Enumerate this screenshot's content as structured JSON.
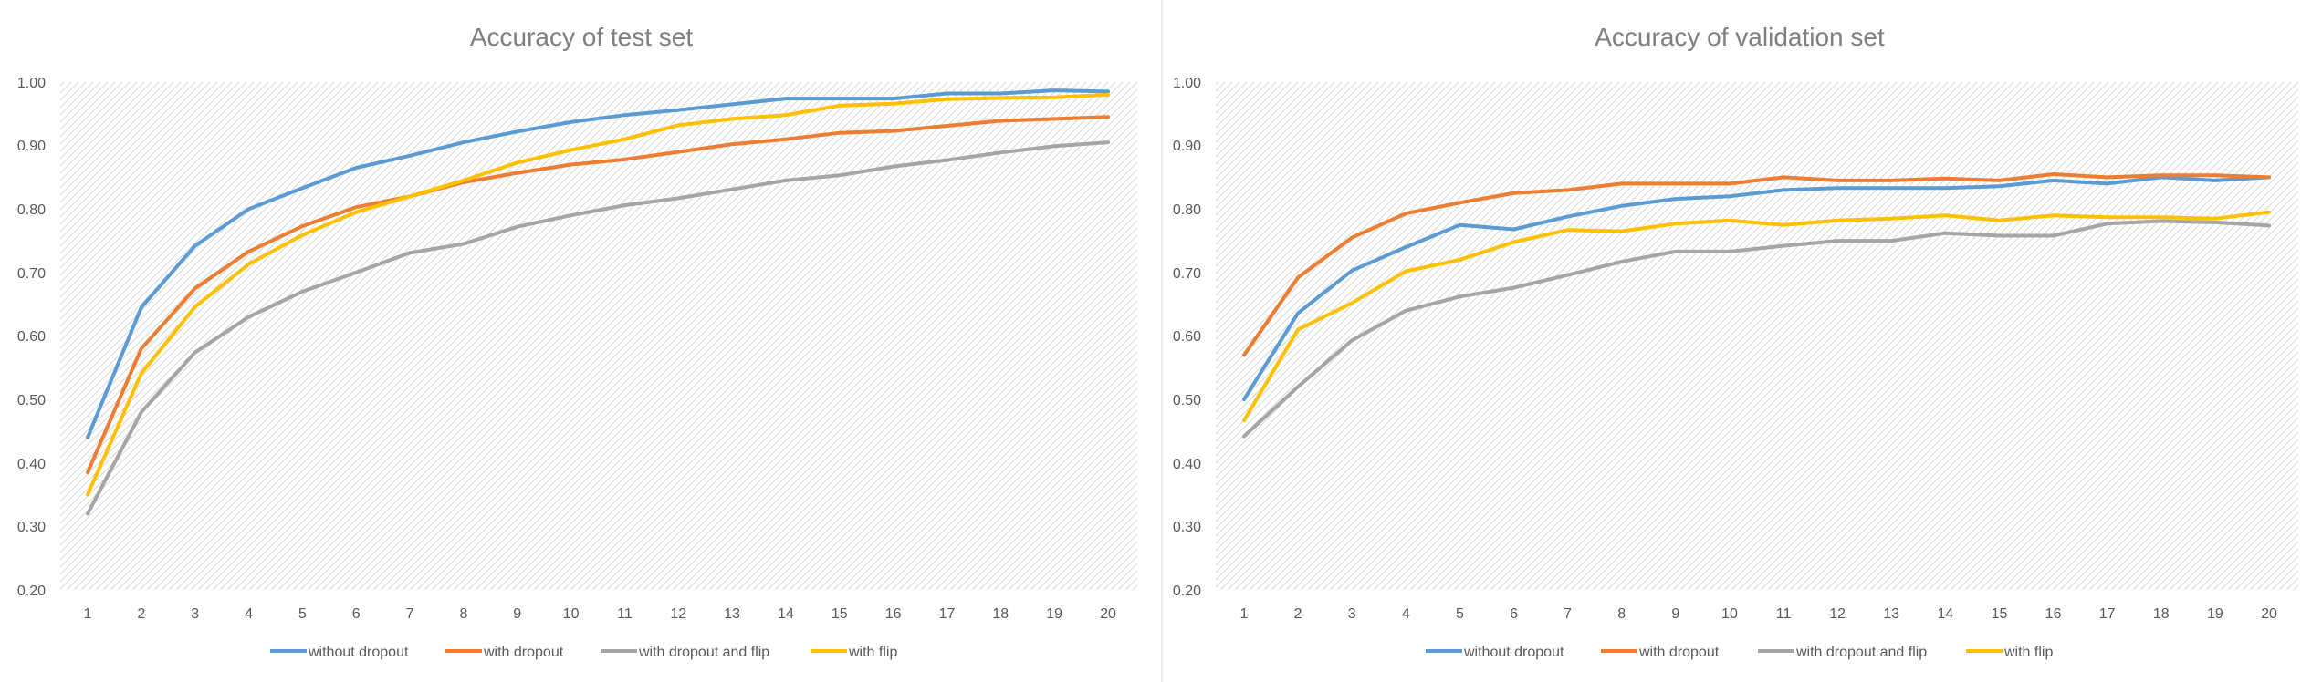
{
  "chart_data": [
    {
      "type": "line",
      "title": "Accuracy of test set",
      "xlabel": "",
      "ylabel": "",
      "categories": [
        "1",
        "2",
        "3",
        "4",
        "5",
        "6",
        "7",
        "8",
        "9",
        "10",
        "11",
        "12",
        "13",
        "14",
        "15",
        "16",
        "17",
        "18",
        "19",
        "20"
      ],
      "ylim": [
        0.2,
        1.0
      ],
      "yticks": [
        "0.20",
        "0.30",
        "0.40",
        "0.50",
        "0.60",
        "0.70",
        "0.80",
        "0.90",
        "1.00"
      ],
      "grid": false,
      "legend": "bottom",
      "series": [
        {
          "name": "without dropout",
          "color": "#5b9bd5",
          "values": [
            0.44,
            0.645,
            0.742,
            0.8,
            0.833,
            0.865,
            0.884,
            0.905,
            0.922,
            0.937,
            0.948,
            0.956,
            0.965,
            0.974,
            0.974,
            0.974,
            0.982,
            0.982,
            0.987,
            0.985
          ]
        },
        {
          "name": "with dropout",
          "color": "#ed7d31",
          "values": [
            0.385,
            0.58,
            0.675,
            0.733,
            0.773,
            0.803,
            0.82,
            0.842,
            0.857,
            0.87,
            0.878,
            0.89,
            0.902,
            0.91,
            0.92,
            0.923,
            0.931,
            0.939,
            0.942,
            0.945
          ]
        },
        {
          "name": "with dropout and flip",
          "color": "#a5a5a5",
          "values": [
            0.32,
            0.48,
            0.574,
            0.63,
            0.67,
            0.7,
            0.731,
            0.745,
            0.772,
            0.79,
            0.806,
            0.817,
            0.831,
            0.845,
            0.853,
            0.867,
            0.877,
            0.889,
            0.899,
            0.905
          ]
        },
        {
          "name": "with flip",
          "color": "#ffc000",
          "values": [
            0.35,
            0.541,
            0.646,
            0.713,
            0.759,
            0.795,
            0.82,
            0.845,
            0.873,
            0.893,
            0.91,
            0.932,
            0.942,
            0.948,
            0.963,
            0.966,
            0.973,
            0.975,
            0.976,
            0.98
          ]
        }
      ]
    },
    {
      "type": "line",
      "title": "Accuracy of validation set",
      "xlabel": "",
      "ylabel": "",
      "categories": [
        "1",
        "2",
        "3",
        "4",
        "5",
        "6",
        "7",
        "8",
        "9",
        "10",
        "11",
        "12",
        "13",
        "14",
        "15",
        "16",
        "17",
        "18",
        "19",
        "20"
      ],
      "ylim": [
        0.2,
        1.0
      ],
      "yticks": [
        "0.20",
        "0.30",
        "0.40",
        "0.50",
        "0.60",
        "0.70",
        "0.80",
        "0.90",
        "1.00"
      ],
      "grid": false,
      "legend": "bottom",
      "series": [
        {
          "name": "without dropout",
          "color": "#5b9bd5",
          "values": [
            0.5,
            0.636,
            0.703,
            0.74,
            0.775,
            0.768,
            0.788,
            0.805,
            0.816,
            0.82,
            0.83,
            0.833,
            0.833,
            0.833,
            0.836,
            0.845,
            0.84,
            0.85,
            0.845,
            0.85
          ]
        },
        {
          "name": "with dropout",
          "color": "#ed7d31",
          "values": [
            0.57,
            0.692,
            0.755,
            0.793,
            0.81,
            0.825,
            0.83,
            0.84,
            0.84,
            0.84,
            0.85,
            0.845,
            0.845,
            0.848,
            0.845,
            0.855,
            0.85,
            0.853,
            0.853,
            0.85
          ]
        },
        {
          "name": "with dropout and flip",
          "color": "#a5a5a5",
          "values": [
            0.442,
            0.52,
            0.593,
            0.64,
            0.662,
            0.676,
            0.696,
            0.717,
            0.733,
            0.733,
            0.742,
            0.75,
            0.75,
            0.762,
            0.758,
            0.758,
            0.777,
            0.781,
            0.779,
            0.774
          ]
        },
        {
          "name": "with flip",
          "color": "#ffc000",
          "values": [
            0.467,
            0.61,
            0.652,
            0.702,
            0.72,
            0.748,
            0.767,
            0.765,
            0.777,
            0.782,
            0.775,
            0.782,
            0.785,
            0.79,
            0.782,
            0.79,
            0.787,
            0.787,
            0.785,
            0.795
          ]
        }
      ]
    }
  ]
}
